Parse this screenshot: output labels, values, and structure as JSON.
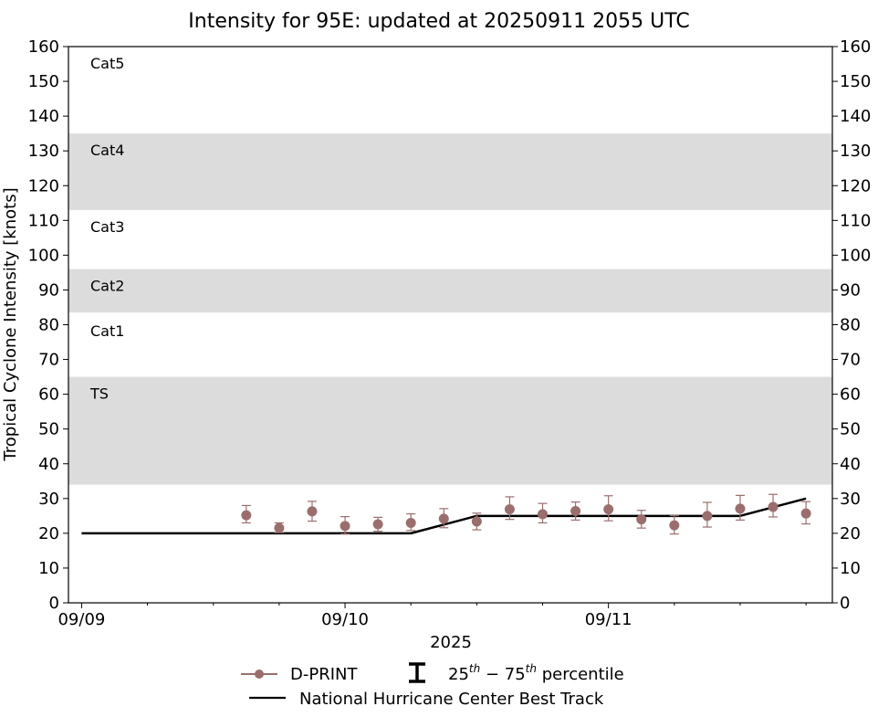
{
  "chart_data": {
    "type": "scatter",
    "title": "Intensity for 95E: updated at 20250911 2055 UTC",
    "xlabel": "2025",
    "ylabel": "Tropical Cyclone Intensity [knots]",
    "ylim": [
      0,
      160
    ],
    "yticks": [
      0,
      10,
      20,
      30,
      40,
      50,
      60,
      70,
      80,
      90,
      100,
      110,
      120,
      130,
      140,
      150,
      160
    ],
    "xlim_days": [
      -0.05,
      2.85
    ],
    "xticks": [
      {
        "label": "09/09",
        "day": 0
      },
      {
        "label": "09/10",
        "day": 1
      },
      {
        "label": "09/11",
        "day": 2
      }
    ],
    "categories": [
      {
        "label": "Cat5",
        "low": 137,
        "high": 160,
        "shaded": false
      },
      {
        "label": "Cat4",
        "low": 113,
        "high": 135,
        "shaded": true
      },
      {
        "label": "Cat3",
        "low": 96,
        "high": 113,
        "shaded": false
      },
      {
        "label": "Cat2",
        "low": 83.5,
        "high": 96,
        "shaded": true
      },
      {
        "label": "Cat1",
        "low": 64,
        "high": 83,
        "shaded": false
      },
      {
        "label": "TS",
        "low": 34,
        "high": 65,
        "shaded": true
      }
    ],
    "series": [
      {
        "name": "D-PRINT",
        "color": "#9b6e6e",
        "x_days": [
          0.625,
          0.75,
          0.875,
          1.0,
          1.125,
          1.25,
          1.375,
          1.5,
          1.625,
          1.75,
          1.875,
          2.0,
          2.125,
          2.25,
          2.375,
          2.5,
          2.625,
          2.75
        ],
        "y": [
          25.2,
          21.5,
          26.3,
          22.1,
          22.6,
          23.0,
          24.2,
          23.4,
          26.9,
          25.5,
          26.4,
          26.9,
          24.0,
          22.3,
          25.0,
          27.1,
          27.6,
          25.7
        ],
        "p25": [
          23.0,
          20.2,
          23.5,
          19.8,
          20.6,
          20.8,
          21.6,
          21.0,
          24.0,
          23.0,
          23.8,
          23.6,
          21.5,
          19.8,
          21.8,
          23.8,
          24.7,
          22.7
        ],
        "p75": [
          28.0,
          23.0,
          29.2,
          24.8,
          24.6,
          25.6,
          27.1,
          25.8,
          30.5,
          28.6,
          29.0,
          30.8,
          26.6,
          25.1,
          28.9,
          30.9,
          31.2,
          29.1
        ]
      },
      {
        "name": "National Hurricane Center Best Track",
        "color": "#000000",
        "x_days": [
          0,
          0.25,
          0.5,
          0.75,
          1.0,
          1.25,
          1.5,
          1.75,
          2.0,
          2.25,
          2.5,
          2.625,
          2.75
        ],
        "y": [
          20,
          20,
          20,
          20,
          20,
          20,
          25,
          25,
          25,
          25,
          25,
          27.5,
          30
        ]
      }
    ],
    "legend": {
      "placement": "bottom-center",
      "dprint": "D-PRINT",
      "percentile": "25th−75th percentile",
      "bt": "National Hurricane Center Best Track"
    }
  }
}
